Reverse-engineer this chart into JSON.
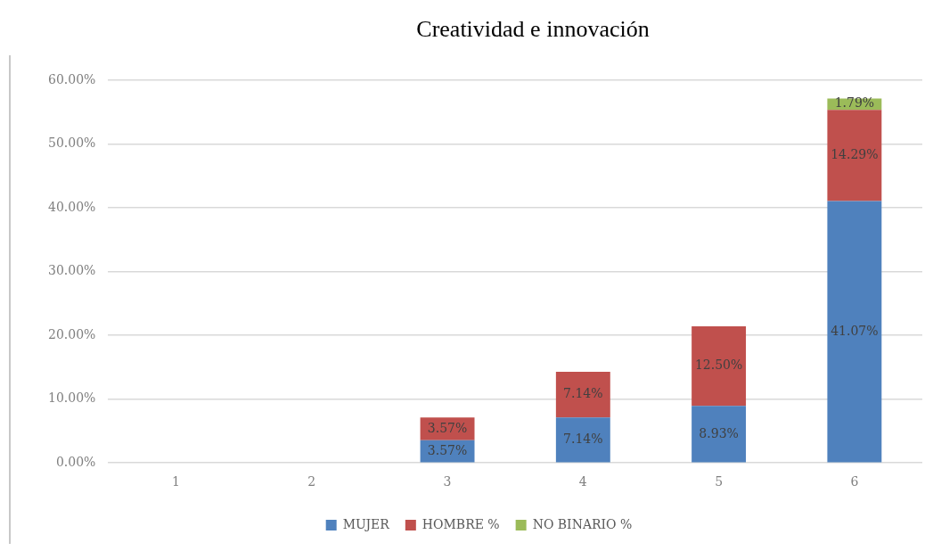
{
  "chart_data": {
    "type": "bar",
    "title": "Creatividad e innovación",
    "categories": [
      "1",
      "2",
      "3",
      "4",
      "5",
      "6"
    ],
    "series": [
      {
        "name": "MUJER",
        "color": "#4f81bd",
        "values": [
          null,
          null,
          3.57,
          7.14,
          8.93,
          41.07
        ],
        "value_labels": [
          null,
          null,
          "3.57%",
          "7.14%",
          "8.93%",
          "41.07%"
        ]
      },
      {
        "name": "HOMBRE %",
        "color": "#c0504d",
        "values": [
          null,
          null,
          3.57,
          7.14,
          12.5,
          14.29
        ],
        "value_labels": [
          null,
          null,
          "3.57%",
          "7.14%",
          "12.50%",
          "14.29%"
        ]
      },
      {
        "name": "NO BINARIO %",
        "color": "#9bbb59",
        "values": [
          null,
          null,
          null,
          null,
          null,
          1.79
        ],
        "value_labels": [
          null,
          null,
          null,
          null,
          null,
          "1.79%"
        ]
      }
    ],
    "stacked": true,
    "ylim": [
      0,
      60
    ],
    "yticks": [
      {
        "value": 0,
        "label": "0.00%"
      },
      {
        "value": 10,
        "label": "10.00%"
      },
      {
        "value": 20,
        "label": "20.00%"
      },
      {
        "value": 30,
        "label": "30.00%"
      },
      {
        "value": 40,
        "label": "40.00%"
      },
      {
        "value": 50,
        "label": "50.00%"
      },
      {
        "value": 60,
        "label": "60.00%"
      }
    ],
    "grid": "y",
    "legend": "bottom"
  }
}
